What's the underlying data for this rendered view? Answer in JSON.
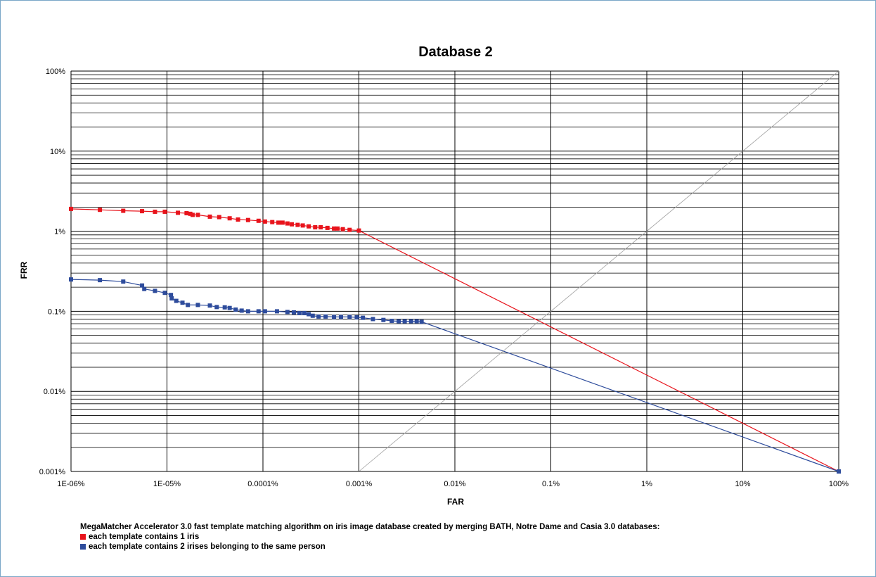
{
  "chart_data": {
    "type": "line",
    "title": "Database 2",
    "xlabel": "FAR",
    "ylabel": "FRR",
    "x_scale": "log",
    "y_scale": "log",
    "xlim": [
      "1E-06%",
      "100%"
    ],
    "ylim": [
      "0.001%",
      "100%"
    ],
    "x_tick_labels": [
      "1E-06%",
      "1E-05%",
      "0.0001%",
      "0.001%",
      "0.01%",
      "0.1%",
      "1%",
      "10%",
      "100%"
    ],
    "y_tick_labels": [
      "100%",
      "10%",
      "1%",
      "0.1%",
      "0.01%",
      "0.001%"
    ],
    "grid": true,
    "caption": "MegaMatcher Accelerator 3.0 fast template matching algorithm on iris image database created by merging BATH, Notre Dame and Casia 3.0 databases:",
    "series": [
      {
        "name": "each template contains 1 iris",
        "color": "#e8141c",
        "x_percent": [
          1e-06,
          2e-06,
          3.5e-06,
          5.5e-06,
          7.5e-06,
          9.5e-06,
          1.3e-05,
          1.6e-05,
          1.75e-05,
          1.85e-05,
          2.1e-05,
          2.8e-05,
          3.5e-05,
          4.5e-05,
          5.5e-05,
          7e-05,
          9e-05,
          0.000105,
          0.000125,
          0.000145,
          0.00016,
          0.00018,
          0.0002,
          0.00023,
          0.00026,
          0.0003,
          0.00035,
          0.0004,
          0.00047,
          0.00055,
          0.0006,
          0.00068,
          0.0008,
          0.001,
          100
        ],
        "frr_percent": [
          1.9,
          1.85,
          1.8,
          1.78,
          1.75,
          1.75,
          1.7,
          1.68,
          1.65,
          1.6,
          1.6,
          1.52,
          1.5,
          1.45,
          1.4,
          1.38,
          1.35,
          1.32,
          1.3,
          1.28,
          1.28,
          1.25,
          1.22,
          1.2,
          1.18,
          1.15,
          1.12,
          1.12,
          1.1,
          1.08,
          1.08,
          1.06,
          1.04,
          1.02,
          0.001
        ]
      },
      {
        "name": "each template contains 2 irises belonging to the same person",
        "color": "#2e4c9c",
        "x_percent": [
          1e-06,
          2e-06,
          3.5e-06,
          5.5e-06,
          5.8e-06,
          7.5e-06,
          9.5e-06,
          1.1e-05,
          1.12e-05,
          1.25e-05,
          1.45e-05,
          1.65e-05,
          2.1e-05,
          2.8e-05,
          3.3e-05,
          4e-05,
          4.5e-05,
          5.2e-05,
          6e-05,
          7e-05,
          9e-05,
          0.000105,
          0.00014,
          0.00018,
          0.00021,
          0.00024,
          0.00027,
          0.0003,
          0.00033,
          0.00038,
          0.00045,
          0.00055,
          0.00065,
          0.0008,
          0.00095,
          0.0011,
          0.0014,
          0.0018,
          0.0022,
          0.0026,
          0.003,
          0.0035,
          0.004,
          0.0045,
          100
        ],
        "frr_percent": [
          0.25,
          0.245,
          0.235,
          0.21,
          0.19,
          0.18,
          0.17,
          0.16,
          0.145,
          0.135,
          0.128,
          0.12,
          0.12,
          0.118,
          0.113,
          0.112,
          0.11,
          0.105,
          0.102,
          0.1,
          0.1,
          0.1,
          0.1,
          0.098,
          0.097,
          0.095,
          0.095,
          0.092,
          0.088,
          0.086,
          0.086,
          0.085,
          0.085,
          0.085,
          0.084,
          0.083,
          0.08,
          0.078,
          0.076,
          0.075,
          0.075,
          0.075,
          0.075,
          0.074,
          0.001
        ]
      },
      {
        "name": "",
        "color": "#a0a0a0",
        "x_percent": [
          0.001,
          100
        ],
        "frr_percent": [
          0.001,
          100
        ]
      }
    ]
  }
}
